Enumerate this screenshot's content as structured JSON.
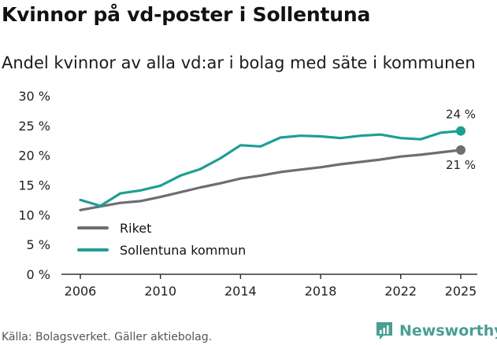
{
  "header": {
    "title": "Kvinnor på vd-poster i Sollentuna",
    "subtitle": "Andel kvinnor av alla vd:ar i bolag med säte i kommunen"
  },
  "footer": {
    "source": "Källa: Bolagsverket. Gäller aktiebolag.",
    "brand": "Newsworthy"
  },
  "colors": {
    "riket": "#6e6d72",
    "sollentuna": "#1d9f94",
    "axis": "#333333",
    "brand": "#4b9e93"
  },
  "icons": {
    "brand_logo": "newsworthy-logo-icon"
  },
  "chart_data": {
    "type": "line",
    "title": "Kvinnor på vd-poster i Sollentuna",
    "subtitle": "Andel kvinnor av alla vd:ar i bolag med säte i kommunen",
    "xlabel": "",
    "ylabel": "",
    "xlim": [
      2006,
      2025
    ],
    "ylim": [
      0,
      30
    ],
    "x_ticks": [
      2006,
      2010,
      2014,
      2018,
      2022,
      2025
    ],
    "x_tick_labels": [
      "2006",
      "2010",
      "2014",
      "2018",
      "2022",
      "2025"
    ],
    "y_ticks": [
      0,
      5,
      10,
      15,
      20,
      25,
      30
    ],
    "y_tick_labels": [
      "0 %",
      "5 %",
      "10 %",
      "15 %",
      "20 %",
      "25 %",
      "30 %"
    ],
    "grid": false,
    "legend_position": "bottom-left",
    "x": [
      2006,
      2007,
      2008,
      2009,
      2010,
      2011,
      2012,
      2013,
      2014,
      2015,
      2016,
      2017,
      2018,
      2019,
      2020,
      2021,
      2022,
      2023,
      2024,
      2025
    ],
    "series": [
      {
        "name": "Riket",
        "color": "#6e6d72",
        "values": [
          10.8,
          11.4,
          12.0,
          12.3,
          13.0,
          13.8,
          14.6,
          15.3,
          16.1,
          16.6,
          17.2,
          17.6,
          18.0,
          18.5,
          18.9,
          19.3,
          19.8,
          20.1,
          20.5,
          20.9
        ],
        "end_label": "21 %"
      },
      {
        "name": "Sollentuna kommun",
        "color": "#1d9f94",
        "values": [
          12.5,
          11.5,
          13.6,
          14.1,
          14.9,
          16.6,
          17.7,
          19.5,
          21.7,
          21.5,
          23.0,
          23.3,
          23.2,
          22.9,
          23.3,
          23.5,
          22.9,
          22.7,
          23.8,
          24.1
        ],
        "end_label": "24 %"
      }
    ]
  }
}
